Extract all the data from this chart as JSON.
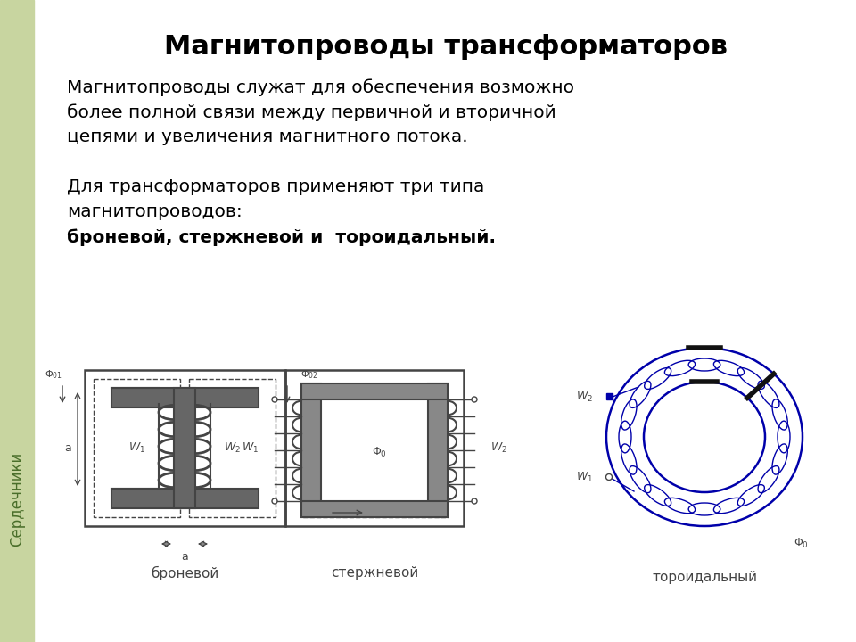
{
  "title": "Магнитопроводы трансформаторов",
  "title_fontsize": 22,
  "title_fontweight": "bold",
  "text1_line1": "Магнитопроводы служат для обеспечения возможно",
  "text1_line2": "более полной связи между первичной и вторичной",
  "text1_line3": "цепями и увеличения магнитного потока.",
  "text2_line1": "Для трансформаторов применяют три типа",
  "text2_line2": "магнитопроводов:",
  "text2_line3_bold": "броневой, стержневой и  тороидальный.",
  "label1": "броневой",
  "label2": "стержневой",
  "label3": "тороидальный",
  "sidebar_text": "Сердечники",
  "sidebar_color": "#c8d5a0",
  "bg_color": "#ffffff",
  "text_color": "#000000",
  "diagram_color": "#444444",
  "blue_color": "#0000aa"
}
